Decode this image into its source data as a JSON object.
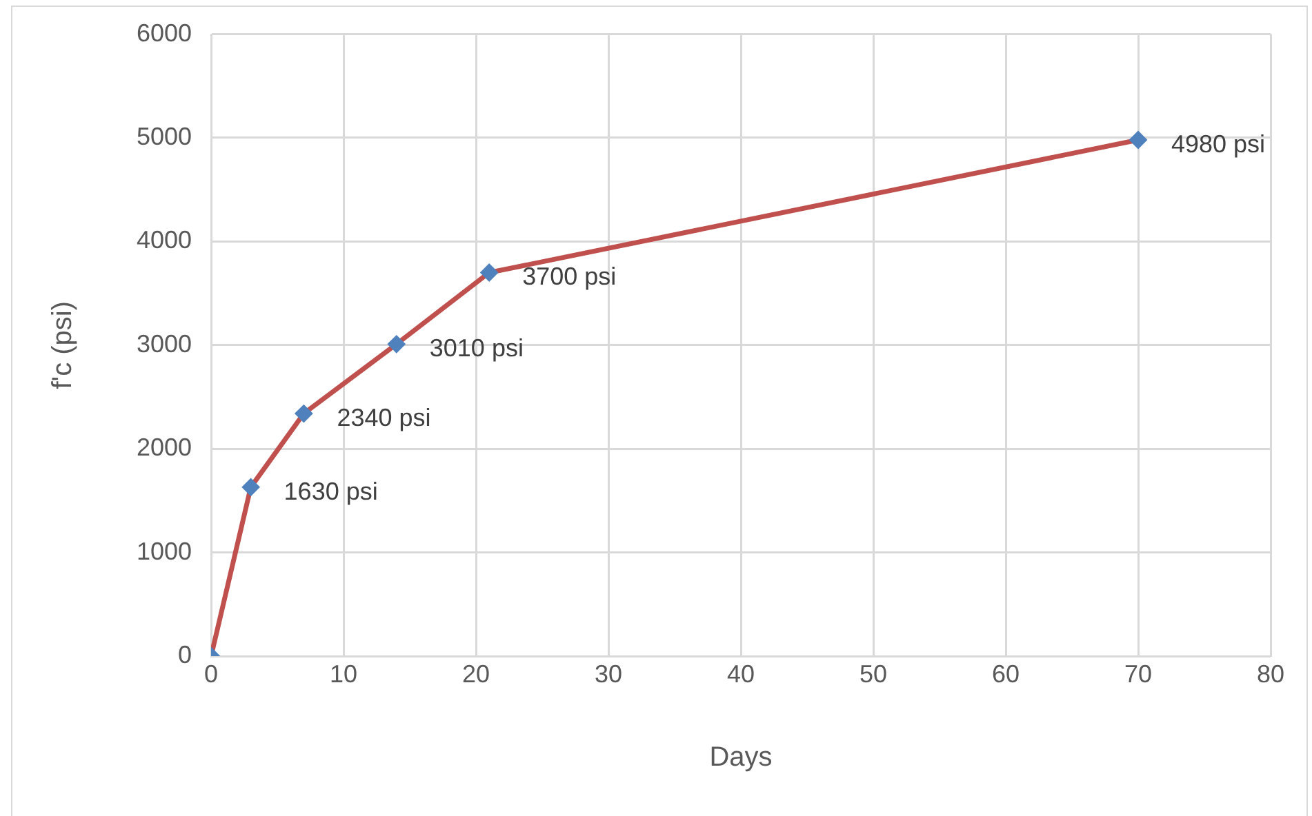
{
  "chart_data": {
    "type": "line",
    "xlabel": "Days",
    "ylabel": "f'c (psi)",
    "x": [
      0,
      3,
      7,
      14,
      21,
      70
    ],
    "series": [
      {
        "color": "#c0504d",
        "values": [
          0,
          1630,
          2340,
          3010,
          3700,
          4980
        ],
        "value_labels": [
          null,
          "1630 psi",
          "2340 psi",
          "3010 psi",
          "3700 psi",
          "4980 psi"
        ]
      }
    ],
    "xlim": [
      0,
      80
    ],
    "xticks": [
      0,
      10,
      20,
      30,
      40,
      50,
      60,
      70,
      80
    ],
    "ylim": [
      0,
      6000
    ],
    "yticks": [
      0,
      1000,
      2000,
      3000,
      4000,
      5000,
      6000
    ],
    "grid": true,
    "legend": false,
    "marker": "diamond",
    "line_style": "solid"
  }
}
